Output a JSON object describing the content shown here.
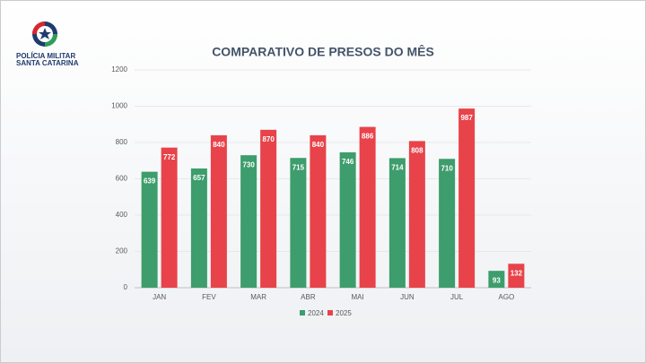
{
  "header": {
    "org_lines": [
      "POLÍCIA MILITAR",
      "SANTA CATARINA"
    ]
  },
  "chart_data": {
    "type": "bar",
    "title": "COMPARATIVO DE PRESOS DO MÊS",
    "categories": [
      "JAN",
      "FEV",
      "MAR",
      "ABR",
      "MAI",
      "JUN",
      "JUL",
      "AGO"
    ],
    "series": [
      {
        "name": "2024",
        "color": "#3d9d6c",
        "values": [
          639,
          657,
          730,
          715,
          746,
          714,
          710,
          93
        ]
      },
      {
        "name": "2025",
        "color": "#e8434a",
        "values": [
          772,
          840,
          870,
          840,
          886,
          808,
          987,
          132
        ]
      }
    ],
    "ylim": [
      0,
      1200
    ],
    "yticks": [
      0,
      200,
      400,
      600,
      800,
      1000,
      1200
    ],
    "grid": true,
    "legend": "bottom"
  }
}
